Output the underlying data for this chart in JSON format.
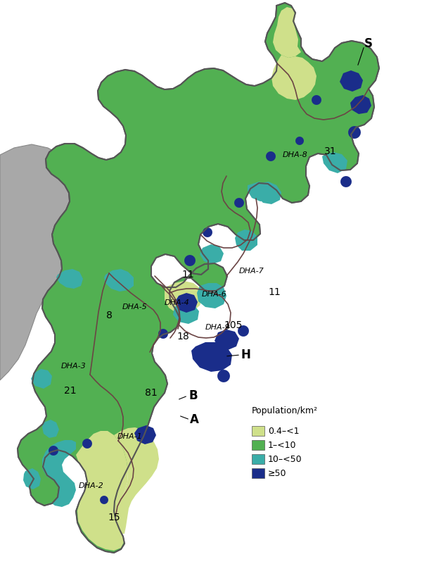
{
  "figsize": [
    6.0,
    8.01
  ],
  "dpi": 100,
  "background_color": "#ffffff",
  "gray_color": "#a8a8a8",
  "outline_color": "#555555",
  "dha_border_color": "#6b4545",
  "colors": {
    "lyg": "#cfe08a",
    "green": "#52b052",
    "teal": "#3aada8",
    "dark_blue": "#1a2d8a"
  },
  "legend_title": "Population/km²",
  "legend_items": [
    {
      "label": "0.4–<1",
      "color": "#cfe08a"
    },
    {
      "label": "1–<10",
      "color": "#52b052"
    },
    {
      "label": "10–<50",
      "color": "#3aada8"
    },
    {
      "label": "≥50",
      "color": "#1a2d8a"
    }
  ]
}
